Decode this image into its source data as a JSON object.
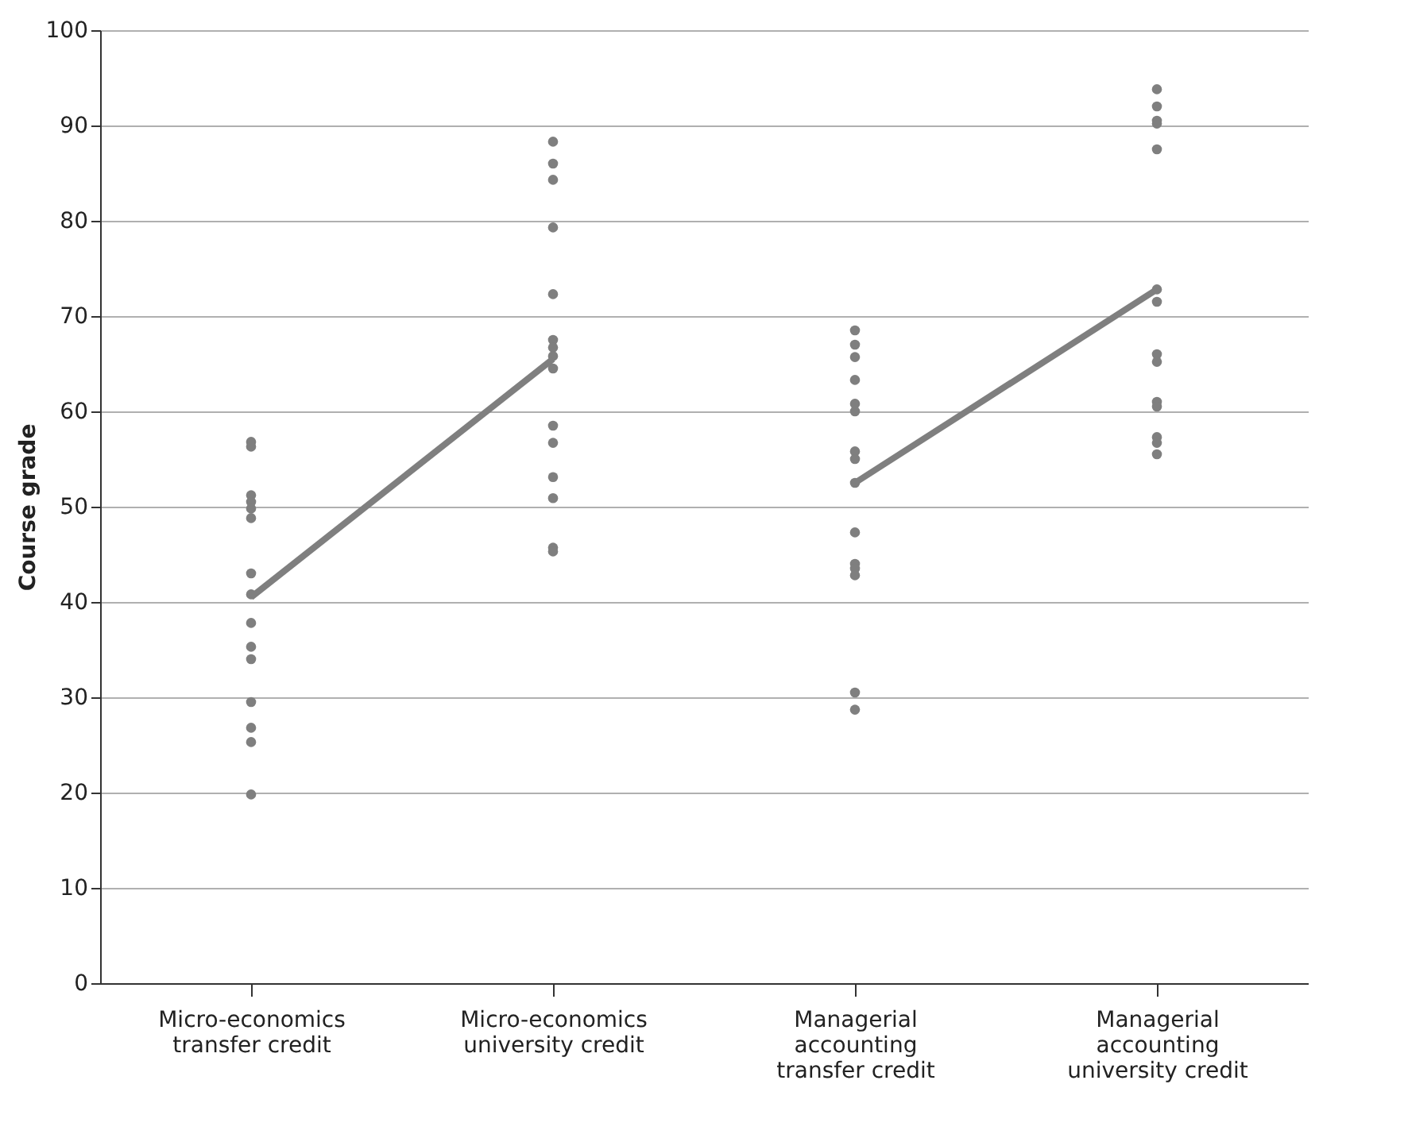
{
  "chart_data": {
    "type": "scatter",
    "ylabel": "Course grade",
    "categories": [
      "Micro-economics transfer credit",
      "Micro-economics university credit",
      "Managerial accounting transfer credit",
      "Managerial accounting university credit"
    ],
    "ylim": [
      0,
      100
    ],
    "yticks": [
      0,
      10,
      20,
      30,
      40,
      50,
      60,
      70,
      80,
      90,
      100
    ],
    "grid": "y",
    "marker": "circle",
    "series": [
      {
        "color": "#7f7f7f",
        "x": [
          "Micro-economics transfer credit",
          "Micro-economics transfer credit",
          "Micro-economics transfer credit",
          "Micro-economics transfer credit",
          "Micro-economics transfer credit",
          "Micro-economics transfer credit",
          "Micro-economics transfer credit",
          "Micro-economics transfer credit",
          "Micro-economics transfer credit",
          "Micro-economics transfer credit",
          "Micro-economics transfer credit",
          "Micro-economics transfer credit",
          "Micro-economics transfer credit",
          "Micro-economics transfer credit",
          "Micro-economics transfer credit"
        ],
        "values": [
          56.8,
          56.3,
          51.2,
          50.5,
          49.8,
          48.8,
          43,
          40.8,
          37.8,
          35.3,
          34,
          29.5,
          26.8,
          25.3,
          19.8
        ]
      },
      {
        "color": "#7f7f7f",
        "x": [
          "Micro-economics university credit",
          "Micro-economics university credit",
          "Micro-economics university credit",
          "Micro-economics university credit",
          "Micro-economics university credit",
          "Micro-economics university credit",
          "Micro-economics university credit",
          "Micro-economics university credit",
          "Micro-economics university credit",
          "Micro-economics university credit",
          "Micro-economics university credit",
          "Micro-economics university credit",
          "Micro-economics university credit",
          "Micro-economics university credit",
          "Micro-economics university credit"
        ],
        "values": [
          88.3,
          86,
          84.3,
          79.3,
          72.3,
          67.5,
          66.7,
          65.8,
          64.5,
          58.5,
          56.7,
          53.1,
          50.9,
          45.7,
          45.3
        ]
      },
      {
        "color": "#7f7f7f",
        "x": [
          "Managerial accounting transfer credit",
          "Managerial accounting transfer credit",
          "Managerial accounting transfer credit",
          "Managerial accounting transfer credit",
          "Managerial accounting transfer credit",
          "Managerial accounting transfer credit",
          "Managerial accounting transfer credit",
          "Managerial accounting transfer credit",
          "Managerial accounting transfer credit",
          "Managerial accounting transfer credit",
          "Managerial accounting transfer credit",
          "Managerial accounting transfer credit",
          "Managerial accounting transfer credit",
          "Managerial accounting transfer credit",
          "Managerial accounting transfer credit"
        ],
        "values": [
          68.5,
          67,
          65.7,
          63.3,
          60.8,
          60,
          55.8,
          55,
          52.5,
          47.3,
          44,
          43.5,
          42.8,
          30.5,
          28.7
        ]
      },
      {
        "color": "#7f7f7f",
        "x": [
          "Managerial accounting university credit",
          "Managerial accounting university credit",
          "Managerial accounting university credit",
          "Managerial accounting university credit",
          "Managerial accounting university credit",
          "Managerial accounting university credit",
          "Managerial accounting university credit",
          "Managerial accounting university credit",
          "Managerial accounting university credit",
          "Managerial accounting university credit",
          "Managerial accounting university credit",
          "Managerial accounting university credit",
          "Managerial accounting university credit",
          "Managerial accounting university credit"
        ],
        "values": [
          93.8,
          92,
          90.5,
          90.2,
          87.5,
          72.8,
          71.5,
          66,
          65.2,
          61,
          60.5,
          57.3,
          56.7,
          55.5
        ]
      },
      {
        "type": "line",
        "color": "#7f7f7f",
        "marker": "none",
        "x": [
          "Micro-economics transfer credit",
          "Micro-economics university credit"
        ],
        "values": [
          40.5,
          65.5
        ]
      },
      {
        "type": "line",
        "color": "#7f7f7f",
        "marker": "none",
        "x": [
          "Managerial accounting transfer credit",
          "Managerial accounting university credit"
        ],
        "values": [
          52.5,
          72.8
        ]
      }
    ]
  }
}
